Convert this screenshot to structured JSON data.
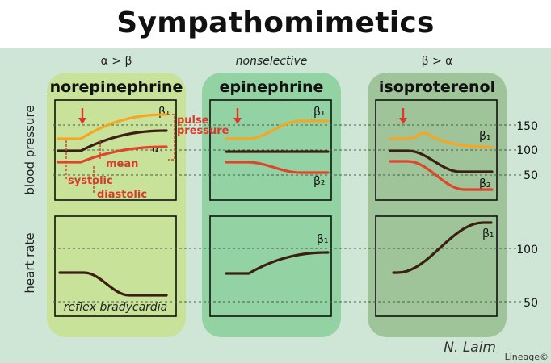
{
  "title": "Sympathomimetics",
  "colors": {
    "outer_bg": "#cfe6d6",
    "norepinephrine_bg": "#c8e29a",
    "epinephrine_bg": "#93d2a3",
    "isoproterenol_bg": "#a0c49a",
    "systolic_line": "#f5a623",
    "mean_line": "#3a1f12",
    "diastolic_line": "#e0452a",
    "heart_rate_line": "#3a1f12",
    "annotation": "#d93a2a",
    "dashed_ref": "#4a5a4a"
  },
  "row_labels": {
    "blood_pressure": "blood pressure",
    "heart_rate": "heart rate"
  },
  "panels": [
    {
      "key": "norepinephrine",
      "selectivity": "α > β",
      "selectivity_italic": false,
      "drug": "norepinephrine",
      "bp_labels": {
        "top": "β₁",
        "bottom": "α₁"
      },
      "hr_label": "",
      "hr_caption": "reflex bradycardia"
    },
    {
      "key": "epinephrine",
      "selectivity": "nonselective",
      "selectivity_italic": true,
      "drug": "epinephrine",
      "bp_labels": {
        "top": "β₁",
        "bottom": "β₂"
      },
      "hr_label": "β₁",
      "hr_caption": ""
    },
    {
      "key": "isoproterenol",
      "selectivity": "β > α",
      "selectivity_italic": false,
      "drug": "isoproterenol",
      "bp_labels": {
        "top": "β₁",
        "bottom": "β₂"
      },
      "hr_label": "β₁",
      "hr_caption": ""
    }
  ],
  "annotations": {
    "pulse_pressure": [
      "pulse",
      "pressure"
    ],
    "mean": "mean",
    "systolic": "systolic",
    "diastolic": "diastolic"
  },
  "scale": {
    "bp_ticks": [
      "150",
      "100",
      "50"
    ],
    "hr_ticks": [
      "100",
      "50"
    ]
  },
  "signature": {
    "name": "N. Laim",
    "brand": "Lineage©"
  }
}
